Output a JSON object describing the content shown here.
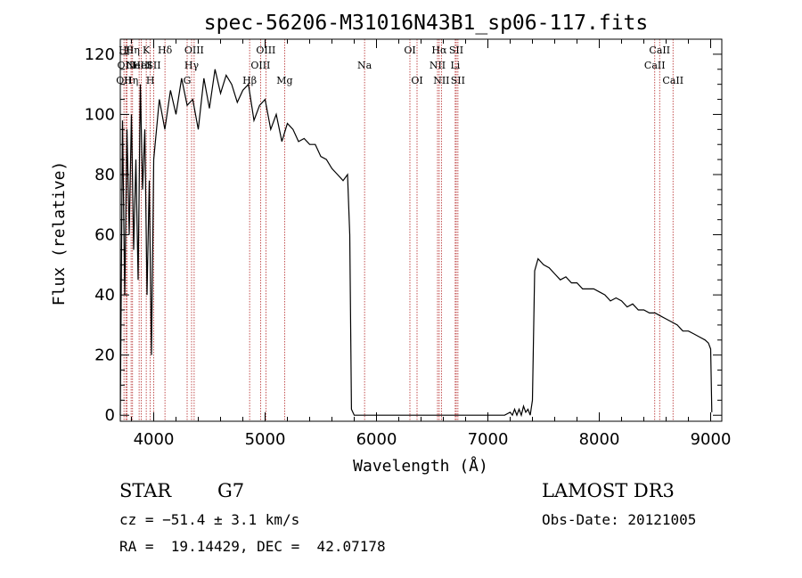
{
  "chart_data": {
    "type": "line",
    "title": "spec-56206-M31016N43B1_sp06-117.fits",
    "xlabel": "Wavelength (Å)",
    "ylabel": "Flux (relative)",
    "xlim": [
      3700,
      9100
    ],
    "ylim": [
      -2,
      125
    ],
    "x_ticks": [
      4000,
      5000,
      6000,
      7000,
      8000,
      9000
    ],
    "y_ticks": [
      0,
      20,
      40,
      60,
      80,
      100,
      120
    ],
    "grid": false,
    "series": [
      {
        "name": "flux",
        "x": [
          3700,
          3720,
          3740,
          3760,
          3780,
          3800,
          3820,
          3840,
          3860,
          3880,
          3900,
          3920,
          3940,
          3960,
          3980,
          4000,
          4050,
          4100,
          4150,
          4200,
          4250,
          4300,
          4350,
          4400,
          4450,
          4500,
          4550,
          4600,
          4650,
          4700,
          4750,
          4800,
          4850,
          4900,
          4950,
          5000,
          5050,
          5100,
          5150,
          5200,
          5250,
          5300,
          5350,
          5400,
          5450,
          5500,
          5550,
          5600,
          5650,
          5700,
          5740,
          5760,
          5775,
          5800,
          6000,
          6500,
          7000,
          7150,
          7200,
          7220,
          7240,
          7260,
          7280,
          7300,
          7320,
          7340,
          7360,
          7380,
          7400,
          7420,
          7450,
          7500,
          7550,
          7600,
          7650,
          7700,
          7750,
          7800,
          7850,
          7900,
          7950,
          8000,
          8050,
          8100,
          8150,
          8200,
          8250,
          8300,
          8350,
          8400,
          8450,
          8500,
          8550,
          8600,
          8650,
          8700,
          8750,
          8800,
          8850,
          8900,
          8950,
          8980,
          9000,
          9010
        ],
        "values": [
          0,
          98,
          40,
          95,
          60,
          100,
          55,
          85,
          45,
          110,
          75,
          95,
          40,
          78,
          20,
          85,
          105,
          95,
          108,
          100,
          112,
          103,
          105,
          95,
          112,
          102,
          115,
          107,
          113,
          110,
          104,
          108,
          110,
          98,
          103,
          105,
          95,
          100,
          91,
          97,
          95,
          91,
          92,
          90,
          90,
          86,
          85,
          82,
          80,
          78,
          80,
          60,
          2,
          0,
          0,
          0,
          0,
          0,
          1,
          0,
          2,
          0,
          2,
          0,
          3,
          1,
          2,
          0,
          5,
          48,
          52,
          50,
          49,
          47,
          45,
          46,
          44,
          44,
          42,
          42,
          42,
          41,
          40,
          38,
          39,
          38,
          36,
          37,
          35,
          35,
          34,
          34,
          33,
          32,
          31,
          30,
          28,
          28,
          27,
          26,
          25,
          24,
          22,
          1
        ]
      }
    ],
    "lines": [
      {
        "wavelength": 3733,
        "label": "OII",
        "row": 2
      },
      {
        "wavelength": 3750,
        "label": "Hθ",
        "row": 0
      },
      {
        "wavelength": 3760,
        "label": "OIII",
        "row": 1
      },
      {
        "wavelength": 3797,
        "label": "Hη",
        "row": 2
      },
      {
        "wavelength": 3810,
        "label": "Hη",
        "row": 0
      },
      {
        "wavelength": 3869,
        "label": "NeIII",
        "row": 1
      },
      {
        "wavelength": 3889,
        "label": "HeI",
        "row": 1
      },
      {
        "wavelength": 3933,
        "label": "K",
        "row": 0
      },
      {
        "wavelength": 3969,
        "label": "H",
        "row": 2
      },
      {
        "wavelength": 4000,
        "label": "SII",
        "row": 1
      },
      {
        "wavelength": 4101,
        "label": "Hδ",
        "row": 0
      },
      {
        "wavelength": 4300,
        "label": "G",
        "row": 2
      },
      {
        "wavelength": 4340,
        "label": "Hγ",
        "row": 1
      },
      {
        "wavelength": 4363,
        "label": "OIII",
        "row": 0
      },
      {
        "wavelength": 4861,
        "label": "Hβ",
        "row": 2
      },
      {
        "wavelength": 4959,
        "label": "OIII",
        "row": 1
      },
      {
        "wavelength": 5007,
        "label": "OIII",
        "row": 0
      },
      {
        "wavelength": 5175,
        "label": "Mg",
        "row": 2
      },
      {
        "wavelength": 5893,
        "label": "Na",
        "row": 1
      },
      {
        "wavelength": 6300,
        "label": "OI",
        "row": 0
      },
      {
        "wavelength": 6364,
        "label": "OI",
        "row": 2
      },
      {
        "wavelength": 6548,
        "label": "NII",
        "row": 1
      },
      {
        "wavelength": 6563,
        "label": "Hα",
        "row": 0
      },
      {
        "wavelength": 6583,
        "label": "NII",
        "row": 2
      },
      {
        "wavelength": 6707,
        "label": "Li",
        "row": 1
      },
      {
        "wavelength": 6716,
        "label": "SII",
        "row": 0
      },
      {
        "wavelength": 6731,
        "label": "SII",
        "row": 2
      },
      {
        "wavelength": 8498,
        "label": "CaII",
        "row": 1
      },
      {
        "wavelength": 8542,
        "label": "CaII",
        "row": 0
      },
      {
        "wavelength": 8662,
        "label": "CaII",
        "row": 2
      }
    ]
  },
  "info": {
    "class": "STAR",
    "subclass": "G7",
    "survey": "LAMOST DR3",
    "cz": "cz = −51.4 ± 3.1 km/s",
    "obs_date": "Obs-Date: 20121005",
    "coords": "RA =  19.14429, DEC =  42.07178"
  },
  "colors": {
    "spectrum": "#000000",
    "line_marker": "#b22222",
    "axes": "#000000"
  }
}
